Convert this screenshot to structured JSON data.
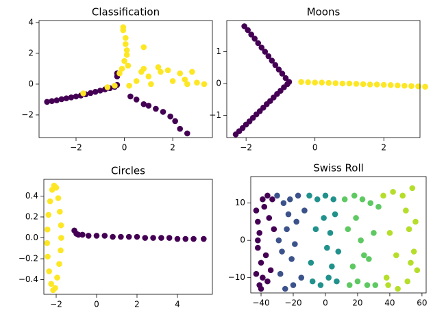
{
  "chart_data": [
    {
      "type": "scatter",
      "title": "Classification",
      "xlim": [
        -3.53,
        3.64
      ],
      "ylim": [
        -3.47,
        4.13
      ],
      "xticks": [
        {
          "value": -2,
          "label": "−2"
        },
        0,
        2
      ],
      "yticks": [
        {
          "value": -2,
          "label": "−2"
        },
        0,
        2,
        4
      ],
      "series": [
        {
          "color": "#440154",
          "x": [
            -3.2,
            -3.0,
            -2.8,
            -2.6,
            -2.4,
            -2.2,
            -2.0,
            -1.8,
            -1.6,
            -1.4,
            -1.2,
            -1.0,
            -0.8,
            -0.6,
            -0.4,
            -0.3,
            -0.3,
            -0.3,
            0.25,
            0.5,
            0.8,
            1.0,
            1.3,
            1.6,
            1.9,
            2.1,
            2.3,
            2.6
          ],
          "y": [
            -1.15,
            -1.1,
            -1.05,
            -0.98,
            -0.92,
            -0.86,
            -0.8,
            -0.74,
            -0.66,
            -0.58,
            -0.5,
            -0.42,
            -0.34,
            -0.26,
            -0.18,
            0.7,
            0.5,
            -0.05,
            -0.8,
            -1.0,
            -1.3,
            -1.4,
            -1.6,
            -1.8,
            -2.1,
            -2.4,
            -2.9,
            -3.2
          ]
        },
        {
          "color": "#fde725",
          "x": [
            -0.05,
            -0.05,
            0.05,
            0.05,
            0.1,
            0.1,
            0.0,
            -0.1,
            -0.2,
            0.5,
            1.0,
            1.5,
            2.0,
            2.5,
            3.0,
            3.3,
            2.8,
            1.8,
            0.8,
            0.7,
            0.8,
            1.4,
            2.3,
            2.6,
            0.2,
            -1.7,
            -0.7,
            -0.4,
            1.1,
            0.15
          ],
          "y": [
            3.7,
            3.5,
            3.0,
            2.6,
            2.2,
            1.9,
            1.5,
            1.0,
            0.7,
            0.2,
            0.5,
            0.8,
            0.2,
            0.3,
            0.1,
            0.0,
            0.8,
            0.9,
            2.4,
            0.8,
            1.0,
            1.1,
            0.7,
            0.0,
            -0.1,
            -0.6,
            -0.2,
            -0.1,
            0.0,
            1.2
          ]
        }
      ]
    },
    {
      "type": "scatter",
      "title": "Moons",
      "xlim": [
        -2.56,
        3.05
      ],
      "ylim": [
        -1.7,
        1.98
      ],
      "xticks": [
        {
          "value": -2,
          "label": "−2"
        },
        0,
        2
      ],
      "yticks": [
        {
          "value": -1,
          "label": "−1"
        },
        0,
        1
      ],
      "series": [
        {
          "color": "#440154",
          "x": [
            -2.3,
            -2.2,
            -2.1,
            -2.0,
            -1.9,
            -1.8,
            -1.7,
            -1.6,
            -1.5,
            -1.4,
            -1.3,
            -1.2,
            -1.1,
            -1.0,
            -0.9,
            -0.8,
            -0.75,
            -0.85,
            -0.95,
            -1.05,
            -1.15,
            -1.25,
            -1.35,
            -1.45,
            -1.55,
            -1.65,
            -1.75,
            -1.85,
            -1.95,
            -2.05
          ],
          "y": [
            -1.6,
            -1.5,
            -1.4,
            -1.29,
            -1.19,
            -1.08,
            -0.97,
            -0.87,
            -0.76,
            -0.65,
            -0.55,
            -0.44,
            -0.33,
            -0.23,
            -0.12,
            -0.02,
            0.05,
            0.17,
            0.31,
            0.44,
            0.58,
            0.72,
            0.86,
            1.0,
            1.13,
            1.27,
            1.41,
            1.54,
            1.68,
            1.8
          ]
        },
        {
          "color": "#fde725",
          "x": [
            -0.4,
            -0.2,
            0.0,
            0.2,
            0.4,
            0.6,
            0.8,
            1.0,
            1.2,
            1.4,
            1.6,
            1.8,
            2.0,
            2.2,
            2.4,
            2.6,
            2.8,
            3.0,
            3.2
          ],
          "y": [
            0.05,
            0.04,
            0.03,
            0.03,
            0.02,
            0.01,
            0.0,
            0.0,
            -0.01,
            -0.02,
            -0.03,
            -0.03,
            -0.04,
            -0.05,
            -0.06,
            -0.07,
            -0.08,
            -0.09,
            -0.1
          ]
        }
      ]
    },
    {
      "type": "scatter",
      "title": "Circles",
      "xlim": [
        -2.61,
        5.73
      ],
      "ylim": [
        -0.54,
        0.56
      ],
      "xticks": [
        {
          "value": -2,
          "label": "−2"
        },
        0,
        2,
        4
      ],
      "yticks": [
        {
          "value": -0.4,
          "label": "−0.4"
        },
        {
          "value": -0.2,
          "label": "−0.2"
        },
        {
          "value": 0,
          "label": "0.0"
        },
        0.2,
        0.4
      ],
      "series": [
        {
          "color": "#fde725",
          "x": [
            -2.1,
            -2.0,
            -1.9,
            -1.82,
            -1.76,
            -1.75,
            -1.78,
            -1.85,
            -1.95,
            -2.05,
            -2.15,
            -2.25,
            -2.35,
            -2.42,
            -2.45,
            -2.43,
            -2.38,
            -2.3,
            -2.2
          ],
          "y": [
            0.5,
            0.48,
            0.38,
            0.25,
            0.12,
            0.0,
            -0.12,
            -0.25,
            -0.38,
            -0.48,
            -0.5,
            -0.44,
            -0.32,
            -0.18,
            -0.05,
            0.08,
            0.22,
            0.35,
            0.46
          ]
        },
        {
          "color": "#440154",
          "x": [
            -1.1,
            -1.0,
            -0.9,
            -0.7,
            -0.4,
            0.0,
            0.4,
            0.8,
            1.2,
            1.6,
            2.0,
            2.4,
            2.8,
            3.2,
            3.6,
            4.0,
            4.4,
            4.8,
            5.3
          ],
          "y": [
            0.07,
            0.04,
            0.03,
            0.03,
            0.02,
            0.02,
            0.02,
            0.01,
            0.01,
            0.01,
            0.01,
            0.0,
            0.0,
            0.0,
            0.0,
            -0.01,
            -0.01,
            -0.01,
            -0.01
          ]
        }
      ]
    },
    {
      "type": "scatter",
      "title": "Swiss Roll",
      "xlim": [
        -46.4,
        62.6
      ],
      "ylim": [
        -14.1,
        17.1
      ],
      "xticks": [
        {
          "value": -40,
          "label": "−40"
        },
        {
          "value": -20,
          "label": "−20"
        },
        0,
        20,
        40,
        60
      ],
      "yticks": [
        {
          "value": -10,
          "label": "−10"
        },
        0,
        10
      ],
      "series": [
        {
          "color": "#440154",
          "x": [
            -43,
            -42,
            -41,
            -42,
            -40,
            -43,
            -41,
            -39,
            -42,
            -40,
            -38,
            -36,
            -35,
            -33,
            -37,
            -34,
            -32,
            -39,
            -36
          ],
          "y": [
            8,
            5,
            2,
            -2,
            -6,
            -9,
            -12,
            11,
            0,
            -13,
            9,
            -11,
            6,
            11,
            -4,
            -8,
            3,
            -10,
            12
          ]
        },
        {
          "color": "#3b528b",
          "x": [
            -30,
            -28,
            -26,
            -25,
            -22,
            -20,
            -18,
            -15,
            -29,
            -24,
            -21,
            -17,
            -27,
            -19,
            -13,
            -23
          ],
          "y": [
            12,
            -9,
            10,
            -13,
            11,
            -12,
            5,
            -10,
            0,
            3,
            -5,
            12,
            -3,
            -1,
            8,
            7
          ]
        },
        {
          "color": "#21918c",
          "x": [
            -10,
            -8,
            -5,
            -3,
            0,
            2,
            5,
            7,
            -6,
            3,
            8,
            -1,
            6,
            -9,
            4,
            1
          ],
          "y": [
            12,
            -11,
            11,
            -12,
            12,
            -10,
            11,
            -11,
            3,
            2,
            -3,
            6,
            7,
            -6,
            -7,
            -2
          ]
        },
        {
          "color": "#5ec962",
          "x": [
            12,
            15,
            18,
            20,
            23,
            26,
            28,
            31,
            14,
            19,
            24,
            30,
            17,
            27,
            33,
            22
          ],
          "y": [
            11,
            -12,
            12,
            -11,
            11,
            -12,
            10,
            -12,
            3,
            6,
            -4,
            2,
            -7,
            -5,
            9,
            0
          ]
        },
        {
          "color": "#b5de2b",
          "x": [
            36,
            39,
            42,
            45,
            48,
            51,
            54,
            56,
            57,
            55,
            52,
            40,
            44,
            50,
            53,
            38
          ],
          "y": [
            12,
            -12,
            13,
            -13,
            12,
            -11,
            14,
            5,
            -8,
            -3,
            3,
            2,
            -4,
            8,
            -6,
            -10
          ]
        }
      ]
    }
  ]
}
